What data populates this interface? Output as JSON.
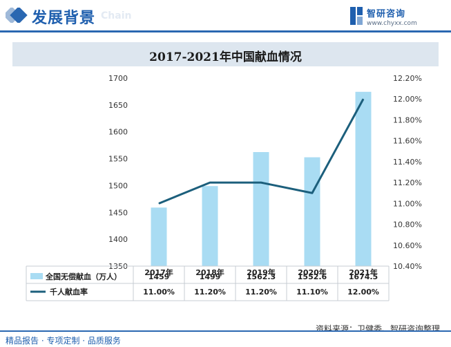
{
  "header": {
    "title": "发展背景",
    "subtitle": "Chain",
    "logo_name": "智研咨询",
    "logo_url": "www.chyxx.com"
  },
  "chart_data": {
    "type": "bar",
    "title": "2017-2021年中国献血情况",
    "categories": [
      "2017年",
      "2018年",
      "2019年",
      "2020年",
      "2021年"
    ],
    "series": [
      {
        "name": "全国无偿献血（万人）",
        "type": "bar",
        "axis": "left",
        "values": [
          1459,
          1499,
          1562.3,
          1552.6,
          1674.5
        ],
        "labels": [
          "1459",
          "1499",
          "1562.3",
          "1552.6",
          "1674.5"
        ],
        "color": "#a9dcf3"
      },
      {
        "name": "千人献血率",
        "type": "line",
        "axis": "right",
        "values": [
          11.0,
          11.2,
          11.2,
          11.1,
          12.0
        ],
        "labels": [
          "11.00%",
          "11.20%",
          "11.20%",
          "11.10%",
          "12.00%"
        ],
        "color": "#1c5f7c"
      }
    ],
    "ylim_left": [
      1350,
      1700
    ],
    "yticks_left": [
      "1350",
      "1400",
      "1450",
      "1500",
      "1550",
      "1600",
      "1650",
      "1700"
    ],
    "ylim_right": [
      10.4,
      12.2
    ],
    "yticks_right": [
      "10.40%",
      "10.60%",
      "10.80%",
      "11.00%",
      "11.20%",
      "11.40%",
      "11.60%",
      "11.80%",
      "12.00%",
      "12.20%"
    ],
    "data_table": true,
    "grid": false
  },
  "source": "资料来源：卫健委、智研咨询整理",
  "footer": "精品报告 · 专项定制 · 品质服务"
}
